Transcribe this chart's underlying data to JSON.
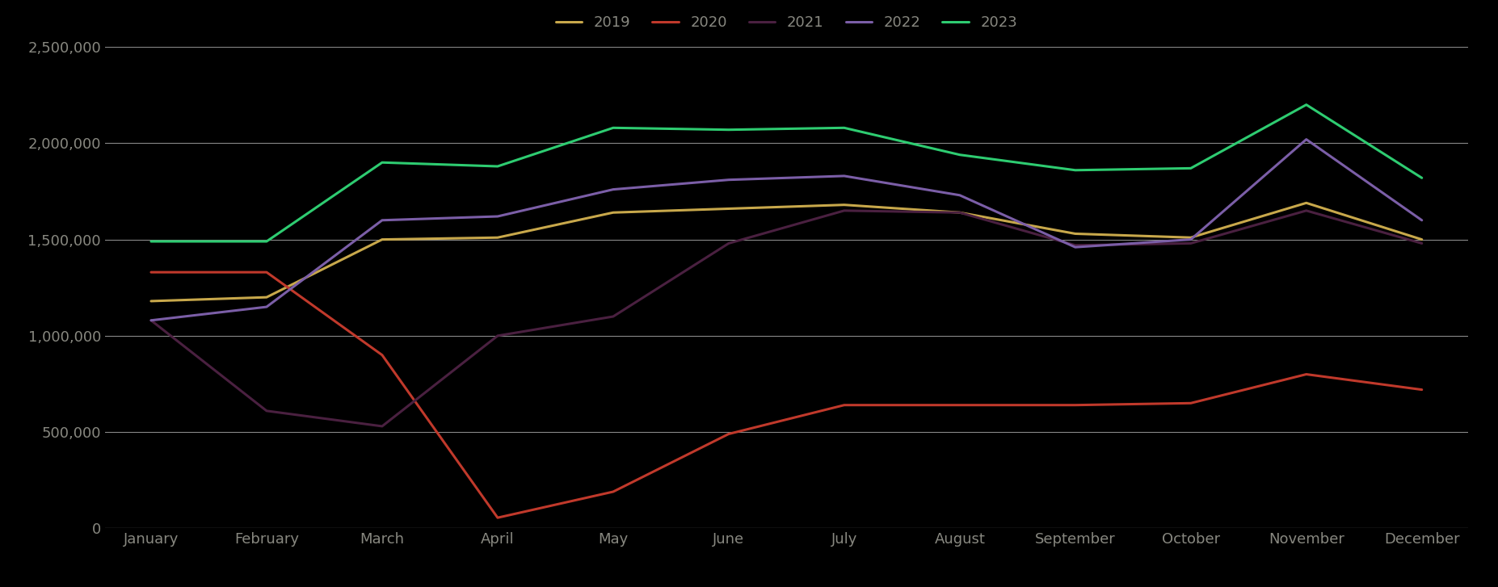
{
  "months": [
    "January",
    "February",
    "March",
    "April",
    "May",
    "June",
    "July",
    "August",
    "September",
    "October",
    "November",
    "December"
  ],
  "series": {
    "2019": {
      "color": "#C8A84B",
      "values": [
        1180000,
        1200000,
        1500000,
        1510000,
        1640000,
        1660000,
        1680000,
        1640000,
        1530000,
        1510000,
        1690000,
        1500000
      ]
    },
    "2020": {
      "color": "#C0392B",
      "values": [
        1330000,
        1330000,
        900000,
        55000,
        190000,
        490000,
        640000,
        640000,
        640000,
        650000,
        800000,
        720000
      ]
    },
    "2021": {
      "color": "#4A2040",
      "values": [
        1080000,
        610000,
        530000,
        1000000,
        1100000,
        1480000,
        1650000,
        1640000,
        1470000,
        1480000,
        1650000,
        1480000
      ]
    },
    "2022": {
      "color": "#7B5EA7",
      "values": [
        1080000,
        1150000,
        1600000,
        1620000,
        1760000,
        1810000,
        1830000,
        1730000,
        1460000,
        1500000,
        2020000,
        1600000
      ]
    },
    "2023": {
      "color": "#2ECC71",
      "values": [
        1490000,
        1490000,
        1900000,
        1880000,
        2080000,
        2070000,
        2080000,
        1940000,
        1860000,
        1870000,
        2200000,
        1820000
      ]
    }
  },
  "ylim": [
    0,
    2500000
  ],
  "yticks": [
    0,
    500000,
    1000000,
    1500000,
    2000000,
    2500000
  ],
  "background_color": "#000000",
  "text_color": "#888880",
  "grid_color": "#888888",
  "legend_order": [
    "2019",
    "2020",
    "2021",
    "2022",
    "2023"
  ],
  "figsize": [
    18.54,
    7.27
  ],
  "dpi": 100
}
